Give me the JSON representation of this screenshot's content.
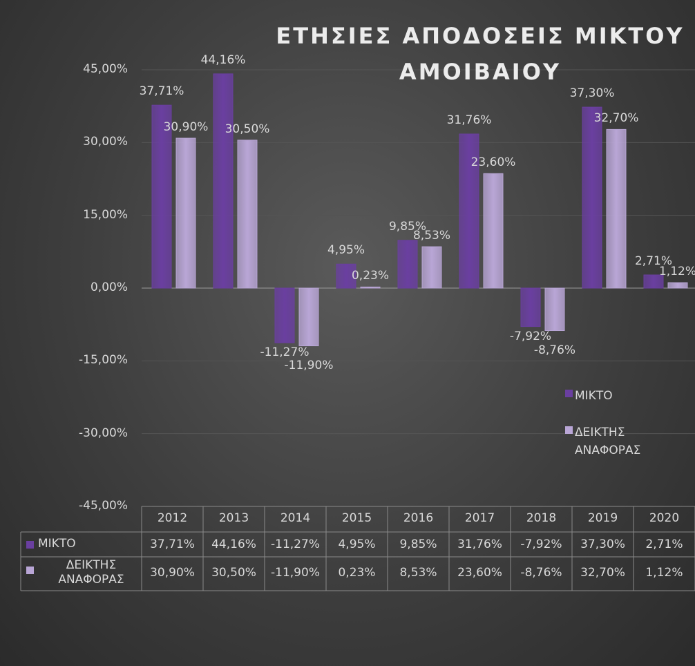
{
  "chart_data": {
    "type": "bar",
    "title": "ΕΤΗΣΙΕΣ ΑΠΟΔΟΣΕΙΣ ΜΙΚΤΟΥ ΑΜΟΙΒΑΙΟΥ",
    "categories": [
      "2012",
      "2013",
      "2014",
      "2015",
      "2016",
      "2017",
      "2018",
      "2019",
      "2020"
    ],
    "series": [
      {
        "name": "ΜΙΚΤΟ",
        "color": "#6a3fa0",
        "values": [
          37.71,
          44.16,
          -11.27,
          4.95,
          9.85,
          31.76,
          -7.92,
          37.3,
          2.71
        ],
        "value_labels": [
          "37,71%",
          "44,16%",
          "-11,27%",
          "4,95%",
          "9,85%",
          "31,76%",
          "-7,92%",
          "37,30%",
          "2,71%"
        ]
      },
      {
        "name": "ΔΕΙΚΤΗΣ ΑΝΑΦΟΡΑΣ",
        "color": "#b9a6d6",
        "values": [
          30.9,
          30.5,
          -11.9,
          0.23,
          8.53,
          23.6,
          -8.76,
          32.7,
          1.12
        ],
        "value_labels": [
          "30,90%",
          "30,50%",
          "-11,90%",
          "0,23%",
          "8,53%",
          "23,60%",
          "-8,76%",
          "32,70%",
          "1,12%"
        ]
      }
    ],
    "ylim": [
      -45,
      45
    ],
    "yticks": [
      {
        "value": -45,
        "label": "-45,00%"
      },
      {
        "value": -30,
        "label": "-30,00%"
      },
      {
        "value": -15,
        "label": "-15,00%"
      },
      {
        "value": 0,
        "label": "0,00%"
      },
      {
        "value": 15,
        "label": "15,00%"
      },
      {
        "value": 30,
        "label": "30,00%"
      },
      {
        "value": 45,
        "label": "45,00%"
      }
    ],
    "grid": true,
    "legend": "right",
    "data_table": true
  }
}
